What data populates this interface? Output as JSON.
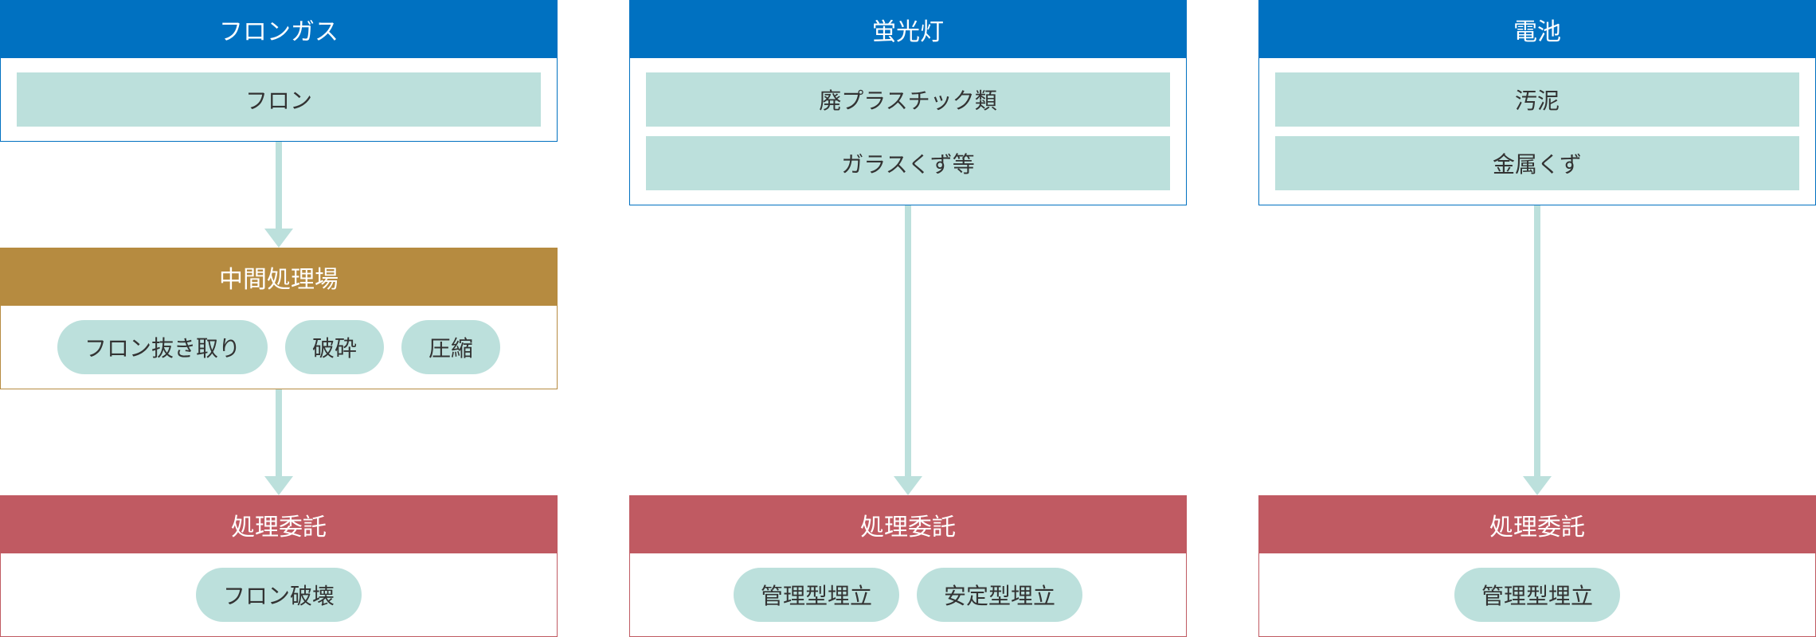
{
  "colors": {
    "header_blue": "#0071c1",
    "header_brown": "#b68b40",
    "header_red": "#c05a62",
    "item_fill": "#bce0dc",
    "text_dark": "#333333",
    "arrow": "#bce0dc",
    "border_blue": "#0071c1",
    "border_brown": "#b68b40",
    "border_red": "#c05a62"
  },
  "columns": [
    {
      "blocks": [
        {
          "header": "フロンガス",
          "header_color": "header_blue",
          "border_color": "border_blue",
          "body_type": "rects",
          "items": [
            "フロン"
          ]
        },
        {
          "header": "中間処理場",
          "header_color": "header_brown",
          "border_color": "border_brown",
          "body_type": "pills",
          "items": [
            "フロン抜き取り",
            "破砕",
            "圧縮"
          ]
        },
        {
          "header": "処理委託",
          "header_color": "header_red",
          "border_color": "border_red",
          "body_type": "pills",
          "items": [
            "フロン破壊"
          ]
        }
      ]
    },
    {
      "blocks": [
        {
          "header": "蛍光灯",
          "header_color": "header_blue",
          "border_color": "border_blue",
          "body_type": "rects",
          "items": [
            "廃プラスチック類",
            "ガラスくず等"
          ]
        },
        {
          "header": "処理委託",
          "header_color": "header_red",
          "border_color": "border_red",
          "body_type": "pills",
          "items": [
            "管理型埋立",
            "安定型埋立"
          ]
        }
      ]
    },
    {
      "blocks": [
        {
          "header": "電池",
          "header_color": "header_blue",
          "border_color": "border_blue",
          "body_type": "rects",
          "items": [
            "汚泥",
            "金属くず"
          ]
        },
        {
          "header": "処理委託",
          "header_color": "header_red",
          "border_color": "border_red",
          "body_type": "pills",
          "items": [
            "管理型埋立"
          ]
        }
      ]
    }
  ]
}
